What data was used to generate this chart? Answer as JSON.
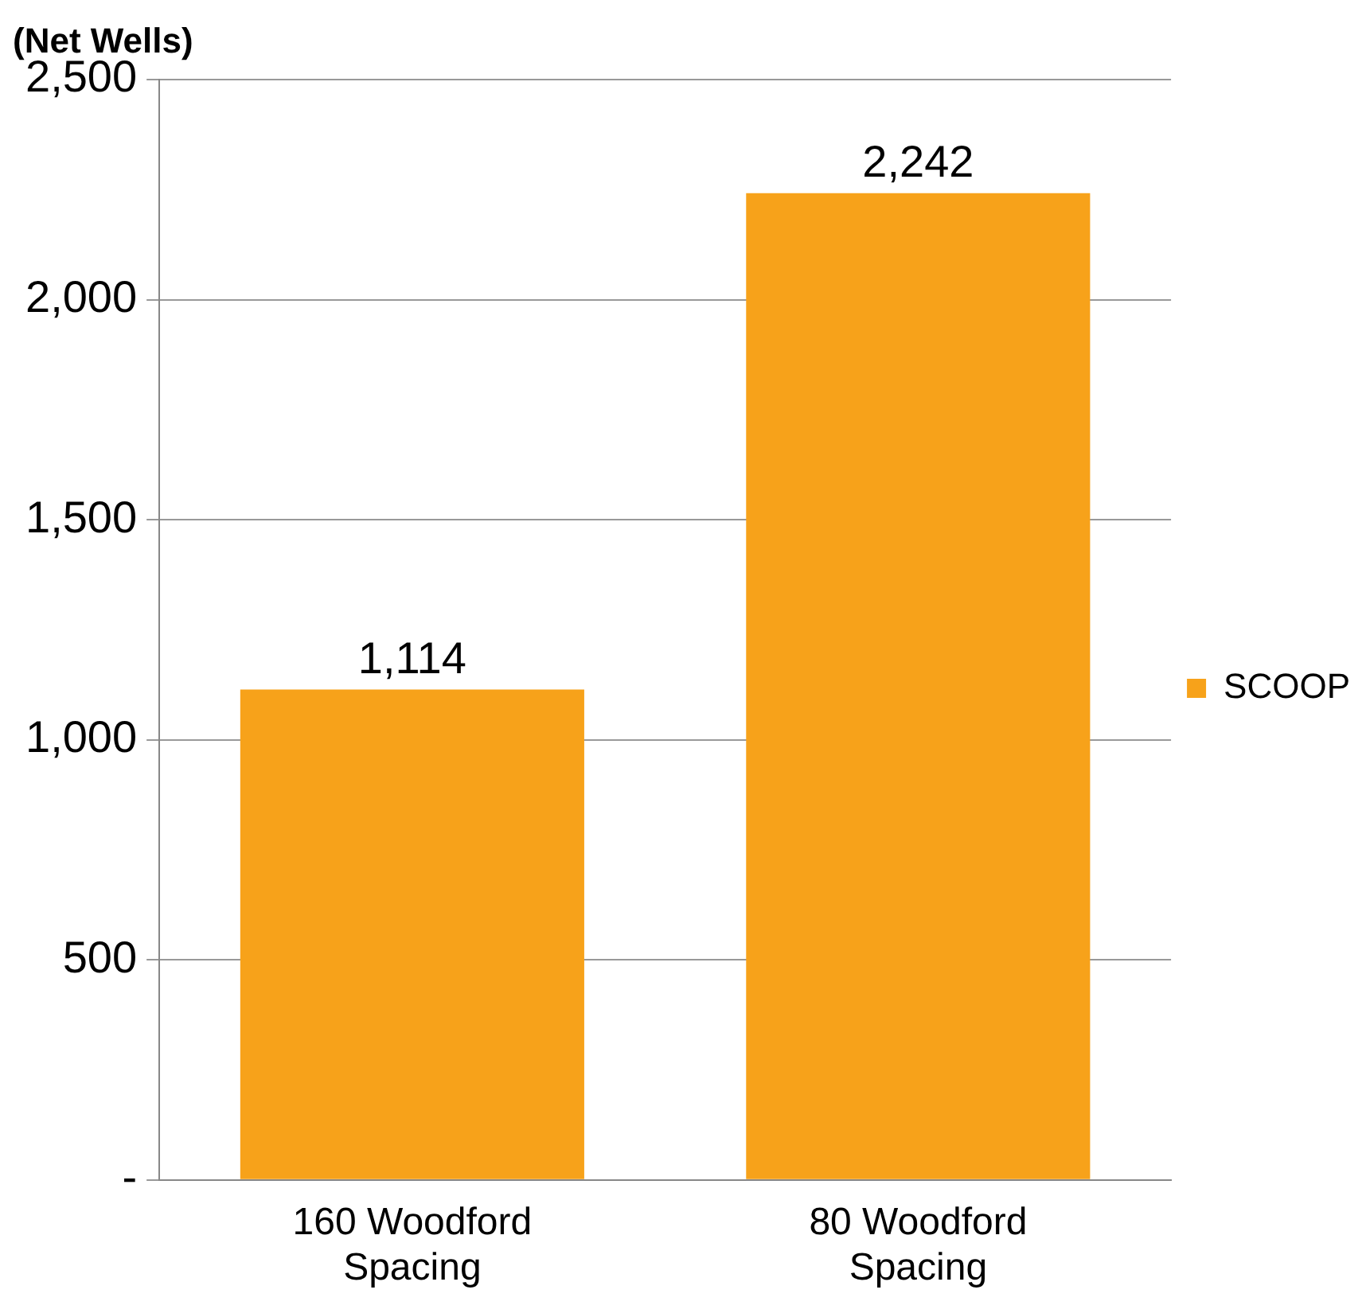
{
  "chart_data": {
    "type": "bar",
    "ylabel": "(Net Wells)",
    "categories": [
      "160 Woodford Spacing",
      "80 Woodford Spacing"
    ],
    "series": [
      {
        "name": "SCOOP",
        "color": "#f7a21a",
        "values": [
          1114,
          2242
        ],
        "value_labels": [
          "1,114",
          "2,242"
        ]
      }
    ],
    "ylim": [
      0,
      2500
    ],
    "yticks": [
      {
        "value": 0,
        "label": "-"
      },
      {
        "value": 500,
        "label": "500"
      },
      {
        "value": 1000,
        "label": "1,000"
      },
      {
        "value": 1500,
        "label": "1,500"
      },
      {
        "value": 2000,
        "label": "2,000"
      },
      {
        "value": 2500,
        "label": "2,500"
      }
    ],
    "grid": "y",
    "legend": "right"
  }
}
